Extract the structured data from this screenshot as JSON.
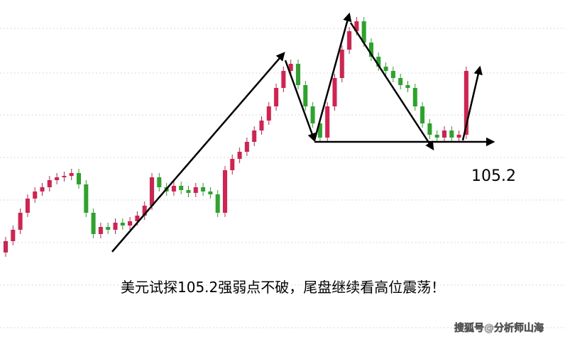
{
  "chart_data": {
    "type": "candlestick",
    "caption": "美元试探105.2强弱点不破，尾盘继续看高位震荡！",
    "watermark": "搜狐号@分析师山海",
    "support_level": 105.2,
    "ylim": [
      103.81,
      106.2
    ],
    "up_color": "#d6204f",
    "down_color": "#2aa52a",
    "open": [
      104.42,
      104.5,
      104.58,
      104.7,
      104.8,
      104.85,
      104.88,
      104.93,
      104.95,
      104.96,
      104.98,
      104.9,
      104.7,
      104.55,
      104.6,
      104.58,
      104.63,
      104.61,
      104.64,
      104.68,
      104.75,
      104.95,
      104.88,
      104.85,
      104.89,
      104.86,
      104.84,
      104.88,
      104.85,
      104.83,
      104.7,
      105.0,
      105.08,
      105.13,
      105.2,
      105.28,
      105.35,
      105.45,
      105.58,
      105.7,
      105.75,
      105.6,
      105.45,
      105.33,
      105.23,
      105.45,
      105.65,
      105.85,
      105.98,
      106.05,
      105.9,
      105.8,
      105.73,
      105.7,
      105.65,
      105.6,
      105.58,
      105.45,
      105.33,
      105.25,
      105.23,
      105.28,
      105.23,
      105.25
    ],
    "high": [
      104.53,
      104.61,
      104.73,
      104.83,
      104.88,
      104.91,
      104.96,
      104.98,
      104.99,
      105.01,
      105.01,
      104.93,
      104.73,
      104.63,
      104.63,
      104.66,
      104.66,
      104.67,
      104.71,
      104.78,
      104.98,
      104.98,
      104.91,
      104.92,
      104.92,
      104.89,
      104.91,
      104.91,
      104.88,
      104.86,
      105.03,
      105.11,
      105.16,
      105.23,
      105.31,
      105.38,
      105.48,
      105.61,
      105.73,
      105.78,
      105.78,
      105.63,
      105.48,
      105.36,
      105.48,
      105.68,
      105.88,
      106.01,
      106.08,
      106.08,
      105.93,
      105.83,
      105.76,
      105.73,
      105.68,
      105.63,
      105.61,
      105.48,
      105.36,
      105.28,
      105.31,
      105.31,
      105.28,
      105.73
    ],
    "low": [
      104.39,
      104.47,
      104.55,
      104.67,
      104.77,
      104.82,
      104.85,
      104.9,
      104.92,
      104.93,
      104.87,
      104.67,
      104.52,
      104.52,
      104.55,
      104.55,
      104.58,
      104.58,
      104.61,
      104.65,
      104.72,
      104.85,
      104.82,
      104.82,
      104.83,
      104.81,
      104.81,
      104.82,
      104.8,
      104.67,
      104.67,
      104.97,
      105.05,
      105.1,
      105.17,
      105.25,
      105.32,
      105.42,
      105.55,
      105.67,
      105.57,
      105.42,
      105.3,
      105.2,
      105.2,
      105.42,
      105.62,
      105.82,
      105.95,
      105.87,
      105.77,
      105.7,
      105.67,
      105.62,
      105.57,
      105.55,
      105.42,
      105.3,
      105.22,
      105.2,
      105.2,
      105.2,
      105.2,
      105.22
    ],
    "close": [
      104.5,
      104.58,
      104.7,
      104.8,
      104.85,
      104.88,
      104.93,
      104.95,
      104.96,
      104.98,
      104.9,
      104.7,
      104.55,
      104.6,
      104.58,
      104.63,
      104.61,
      104.64,
      104.68,
      104.75,
      104.95,
      104.88,
      104.85,
      104.89,
      104.86,
      104.84,
      104.88,
      104.85,
      104.83,
      104.7,
      105.0,
      105.08,
      105.13,
      105.2,
      105.28,
      105.35,
      105.45,
      105.58,
      105.7,
      105.75,
      105.6,
      105.45,
      105.33,
      105.23,
      105.45,
      105.65,
      105.85,
      105.98,
      106.05,
      105.9,
      105.8,
      105.73,
      105.7,
      105.65,
      105.6,
      105.58,
      105.45,
      105.33,
      105.25,
      105.23,
      105.28,
      105.23,
      105.25,
      105.7
    ]
  }
}
